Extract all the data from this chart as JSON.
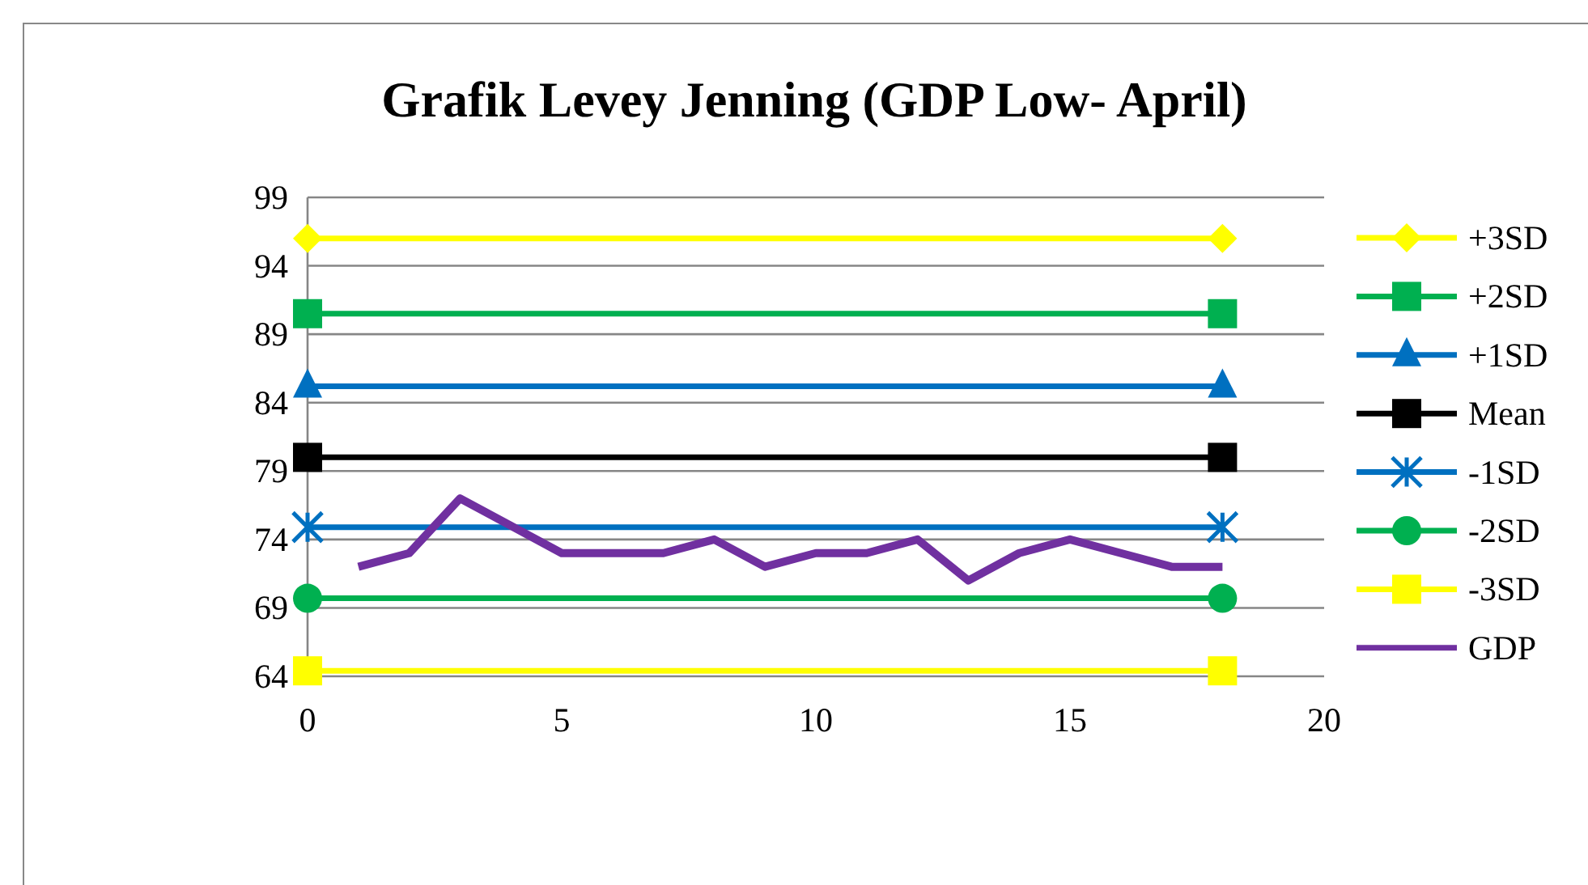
{
  "chart_data": {
    "type": "line",
    "title": "Grafik Levey Jenning (GDP Low- April)",
    "xlim": [
      0,
      20
    ],
    "xticks": [
      0,
      5,
      10,
      15,
      20
    ],
    "ylim": [
      64,
      99
    ],
    "yticks": [
      64,
      69,
      74,
      79,
      84,
      89,
      94,
      99
    ],
    "grid": "y",
    "legend": "right",
    "series": [
      {
        "name": "+3SD",
        "color": "#ffff00",
        "marker": "diamond",
        "x": [
          0,
          18
        ],
        "values": [
          96.0,
          96.0
        ]
      },
      {
        "name": "+2SD",
        "color": "#00b050",
        "marker": "square",
        "x": [
          0,
          18
        ],
        "values": [
          90.5,
          90.5
        ]
      },
      {
        "name": "+1SD",
        "color": "#0070c0",
        "marker": "triangle",
        "x": [
          0,
          18
        ],
        "values": [
          85.2,
          85.2
        ]
      },
      {
        "name": "Mean",
        "color": "#000000",
        "marker": "square",
        "x": [
          0,
          18
        ],
        "values": [
          80.0,
          80.0
        ]
      },
      {
        "name": "-1SD",
        "color": "#0070c0",
        "marker": "cross",
        "x": [
          0,
          18
        ],
        "values": [
          74.9,
          74.9
        ]
      },
      {
        "name": "-2SD",
        "color": "#00b050",
        "marker": "circle",
        "x": [
          0,
          18
        ],
        "values": [
          69.7,
          69.7
        ]
      },
      {
        "name": "-3SD",
        "color": "#ffff00",
        "marker": "square",
        "x": [
          0,
          18
        ],
        "values": [
          64.4,
          64.4
        ]
      },
      {
        "name": "GDP",
        "color": "#7030a0",
        "marker": "none",
        "x": [
          1,
          2,
          3,
          4,
          5,
          6,
          7,
          8,
          9,
          10,
          11,
          12,
          13,
          14,
          15,
          16,
          17,
          18
        ],
        "values": [
          72,
          73,
          77,
          75,
          73,
          73,
          73,
          74,
          72,
          73,
          73,
          74,
          71,
          73,
          74,
          73,
          72,
          72
        ]
      }
    ]
  }
}
